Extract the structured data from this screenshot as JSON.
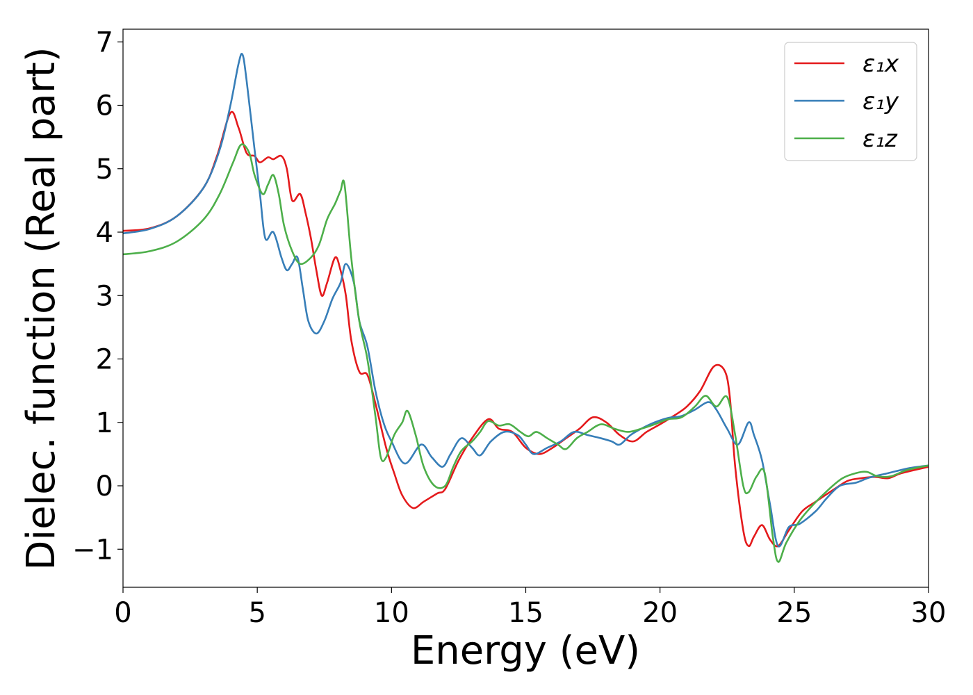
{
  "chart_data": {
    "type": "line",
    "title": "",
    "xlabel": "Energy (eV)",
    "ylabel": "Dielec. function (Real part)",
    "xlim": [
      0,
      30
    ],
    "ylim": [
      -1.6,
      7.2
    ],
    "xticks": [
      0,
      5,
      10,
      15,
      20,
      25,
      30
    ],
    "xtick_labels": [
      "0",
      "5",
      "10",
      "15",
      "20",
      "25",
      "30"
    ],
    "yticks": [
      -1,
      0,
      1,
      2,
      3,
      4,
      5,
      6,
      7
    ],
    "ytick_labels": [
      "−1",
      "0",
      "1",
      "2",
      "3",
      "4",
      "5",
      "6",
      "7"
    ],
    "grid": false,
    "legend_position": "top-right",
    "series": [
      {
        "name": "ε₁x",
        "color": "#e41a1c",
        "points": [
          [
            0,
            4.02
          ],
          [
            1,
            4.06
          ],
          [
            2,
            4.25
          ],
          [
            3,
            4.7
          ],
          [
            3.5,
            5.2
          ],
          [
            4,
            5.88
          ],
          [
            4.3,
            5.65
          ],
          [
            4.6,
            5.25
          ],
          [
            4.9,
            5.2
          ],
          [
            5.1,
            5.1
          ],
          [
            5.4,
            5.18
          ],
          [
            5.6,
            5.15
          ],
          [
            5.9,
            5.2
          ],
          [
            6.1,
            5.0
          ],
          [
            6.3,
            4.5
          ],
          [
            6.6,
            4.6
          ],
          [
            6.8,
            4.3
          ],
          [
            7,
            3.9
          ],
          [
            7.2,
            3.4
          ],
          [
            7.4,
            3.0
          ],
          [
            7.6,
            3.2
          ],
          [
            7.9,
            3.6
          ],
          [
            8.1,
            3.4
          ],
          [
            8.3,
            3.0
          ],
          [
            8.5,
            2.3
          ],
          [
            8.8,
            1.8
          ],
          [
            9.1,
            1.75
          ],
          [
            9.4,
            1.3
          ],
          [
            9.8,
            0.6
          ],
          [
            10.1,
            0.2
          ],
          [
            10.4,
            -0.15
          ],
          [
            10.8,
            -0.35
          ],
          [
            11.2,
            -0.25
          ],
          [
            11.7,
            -0.12
          ],
          [
            12,
            -0.05
          ],
          [
            12.5,
            0.4
          ],
          [
            13,
            0.75
          ],
          [
            13.6,
            1.05
          ],
          [
            14,
            0.9
          ],
          [
            14.5,
            0.85
          ],
          [
            15,
            0.6
          ],
          [
            15.5,
            0.5
          ],
          [
            16,
            0.6
          ],
          [
            16.5,
            0.75
          ],
          [
            17,
            0.9
          ],
          [
            17.5,
            1.08
          ],
          [
            18,
            1.0
          ],
          [
            18.5,
            0.8
          ],
          [
            19,
            0.7
          ],
          [
            19.5,
            0.85
          ],
          [
            20,
            0.97
          ],
          [
            20.5,
            1.1
          ],
          [
            21,
            1.25
          ],
          [
            21.5,
            1.5
          ],
          [
            22,
            1.88
          ],
          [
            22.4,
            1.82
          ],
          [
            22.6,
            1.4
          ],
          [
            22.8,
            0.3
          ],
          [
            23.1,
            -0.7
          ],
          [
            23.3,
            -0.95
          ],
          [
            23.5,
            -0.8
          ],
          [
            23.8,
            -0.62
          ],
          [
            24.1,
            -0.85
          ],
          [
            24.4,
            -0.95
          ],
          [
            24.8,
            -0.7
          ],
          [
            25.3,
            -0.4
          ],
          [
            25.8,
            -0.25
          ],
          [
            26.5,
            -0.05
          ],
          [
            27,
            0.08
          ],
          [
            27.5,
            0.12
          ],
          [
            28,
            0.14
          ],
          [
            28.5,
            0.12
          ],
          [
            29,
            0.2
          ],
          [
            30,
            0.3
          ]
        ]
      },
      {
        "name": "ε₁y",
        "color": "#377eb8",
        "points": [
          [
            0,
            3.98
          ],
          [
            1,
            4.05
          ],
          [
            2,
            4.25
          ],
          [
            3,
            4.7
          ],
          [
            3.6,
            5.3
          ],
          [
            4,
            6.0
          ],
          [
            4.3,
            6.65
          ],
          [
            4.45,
            6.8
          ],
          [
            4.6,
            6.4
          ],
          [
            4.9,
            5.3
          ],
          [
            5.1,
            4.6
          ],
          [
            5.3,
            3.9
          ],
          [
            5.6,
            4.0
          ],
          [
            5.9,
            3.6
          ],
          [
            6.1,
            3.4
          ],
          [
            6.3,
            3.5
          ],
          [
            6.5,
            3.6
          ],
          [
            6.7,
            3.1
          ],
          [
            6.9,
            2.6
          ],
          [
            7.2,
            2.4
          ],
          [
            7.5,
            2.6
          ],
          [
            7.8,
            2.95
          ],
          [
            8.1,
            3.2
          ],
          [
            8.3,
            3.5
          ],
          [
            8.6,
            3.2
          ],
          [
            8.8,
            2.6
          ],
          [
            9.1,
            2.2
          ],
          [
            9.4,
            1.5
          ],
          [
            9.7,
            1.0
          ],
          [
            10,
            0.7
          ],
          [
            10.5,
            0.35
          ],
          [
            11.1,
            0.65
          ],
          [
            11.5,
            0.45
          ],
          [
            11.9,
            0.3
          ],
          [
            12.2,
            0.5
          ],
          [
            12.6,
            0.75
          ],
          [
            13,
            0.6
          ],
          [
            13.3,
            0.48
          ],
          [
            13.7,
            0.7
          ],
          [
            14.2,
            0.85
          ],
          [
            14.7,
            0.8
          ],
          [
            15,
            0.65
          ],
          [
            15.3,
            0.5
          ],
          [
            15.8,
            0.6
          ],
          [
            16.3,
            0.7
          ],
          [
            16.8,
            0.85
          ],
          [
            17.3,
            0.8
          ],
          [
            17.8,
            0.75
          ],
          [
            18.2,
            0.7
          ],
          [
            18.5,
            0.65
          ],
          [
            18.9,
            0.8
          ],
          [
            19.3,
            0.9
          ],
          [
            19.8,
            1.0
          ],
          [
            20.3,
            1.07
          ],
          [
            20.8,
            1.1
          ],
          [
            21.3,
            1.2
          ],
          [
            21.8,
            1.32
          ],
          [
            22.1,
            1.2
          ],
          [
            22.5,
            0.9
          ],
          [
            22.9,
            0.65
          ],
          [
            23.3,
            1.0
          ],
          [
            23.5,
            0.8
          ],
          [
            23.8,
            0.4
          ],
          [
            24.1,
            -0.3
          ],
          [
            24.4,
            -0.95
          ],
          [
            24.8,
            -0.65
          ],
          [
            25.2,
            -0.6
          ],
          [
            25.8,
            -0.4
          ],
          [
            26.2,
            -0.2
          ],
          [
            26.7,
            0.0
          ],
          [
            27.3,
            0.05
          ],
          [
            27.8,
            0.13
          ],
          [
            28.5,
            0.2
          ],
          [
            29.3,
            0.28
          ],
          [
            30,
            0.32
          ]
        ]
      },
      {
        "name": "ε₁z",
        "color": "#4daf4a",
        "points": [
          [
            0,
            3.65
          ],
          [
            1,
            3.7
          ],
          [
            2,
            3.85
          ],
          [
            3,
            4.2
          ],
          [
            3.6,
            4.6
          ],
          [
            4.1,
            5.1
          ],
          [
            4.4,
            5.38
          ],
          [
            4.7,
            5.25
          ],
          [
            4.9,
            4.9
          ],
          [
            5.2,
            4.6
          ],
          [
            5.4,
            4.75
          ],
          [
            5.6,
            4.9
          ],
          [
            5.8,
            4.6
          ],
          [
            6,
            4.1
          ],
          [
            6.3,
            3.7
          ],
          [
            6.6,
            3.5
          ],
          [
            7,
            3.6
          ],
          [
            7.3,
            3.8
          ],
          [
            7.6,
            4.2
          ],
          [
            7.9,
            4.45
          ],
          [
            8.1,
            4.65
          ],
          [
            8.25,
            4.75
          ],
          [
            8.5,
            3.6
          ],
          [
            8.8,
            2.6
          ],
          [
            9.1,
            2.0
          ],
          [
            9.4,
            1.1
          ],
          [
            9.6,
            0.45
          ],
          [
            9.8,
            0.45
          ],
          [
            10.1,
            0.8
          ],
          [
            10.4,
            1.0
          ],
          [
            10.6,
            1.18
          ],
          [
            10.9,
            0.8
          ],
          [
            11.2,
            0.3
          ],
          [
            11.6,
            0.0
          ],
          [
            12,
            0.0
          ],
          [
            12.3,
            0.3
          ],
          [
            12.6,
            0.55
          ],
          [
            13,
            0.7
          ],
          [
            13.3,
            0.85
          ],
          [
            13.6,
            1.02
          ],
          [
            14,
            0.95
          ],
          [
            14.4,
            0.97
          ],
          [
            14.8,
            0.85
          ],
          [
            15.1,
            0.78
          ],
          [
            15.4,
            0.85
          ],
          [
            15.8,
            0.75
          ],
          [
            16.2,
            0.65
          ],
          [
            16.5,
            0.58
          ],
          [
            16.9,
            0.75
          ],
          [
            17.3,
            0.85
          ],
          [
            17.8,
            0.97
          ],
          [
            18.3,
            0.9
          ],
          [
            18.8,
            0.85
          ],
          [
            19.3,
            0.9
          ],
          [
            19.8,
            0.97
          ],
          [
            20.3,
            1.05
          ],
          [
            20.8,
            1.08
          ],
          [
            21.3,
            1.25
          ],
          [
            21.7,
            1.42
          ],
          [
            22.1,
            1.25
          ],
          [
            22.5,
            1.4
          ],
          [
            22.8,
            0.8
          ],
          [
            23.1,
            0.0
          ],
          [
            23.3,
            -0.1
          ],
          [
            23.6,
            0.15
          ],
          [
            23.9,
            0.2
          ],
          [
            24.2,
            -0.8
          ],
          [
            24.4,
            -1.2
          ],
          [
            24.7,
            -0.9
          ],
          [
            25.2,
            -0.55
          ],
          [
            25.7,
            -0.3
          ],
          [
            26.3,
            -0.05
          ],
          [
            26.8,
            0.12
          ],
          [
            27.3,
            0.2
          ],
          [
            27.7,
            0.22
          ],
          [
            28.1,
            0.15
          ],
          [
            28.6,
            0.15
          ],
          [
            29.2,
            0.25
          ],
          [
            30,
            0.32
          ]
        ]
      }
    ]
  }
}
